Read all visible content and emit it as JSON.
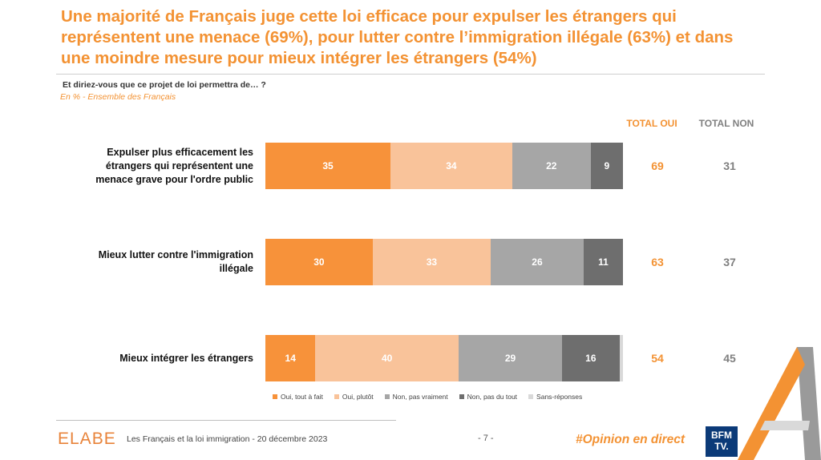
{
  "header": {
    "title": "Une majorité de Français juge cette loi efficace pour expulser les étrangers qui représentent une menace (69%), pour lutter contre l’immigration illégale (63%) et dans une moindre mesure pour mieux intégrer les étrangers (54%)",
    "question": "Et diriez-vous que ce projet de loi permettra de… ?",
    "base": "En % - Ensemble des Français"
  },
  "columns": {
    "total_yes": "TOTAL OUI",
    "total_no": "TOTAL NON"
  },
  "colors": {
    "oui_tout_a_fait": "#f7923a",
    "oui_plutot": "#f9c39a",
    "non_pas_vraiment": "#a6a6a6",
    "non_pas_du_tout": "#6e6e6e",
    "sans_reponse": "#d9d9d9",
    "accent": "#f39233"
  },
  "chart_data": {
    "type": "bar",
    "orientation": "horizontal-stacked-100",
    "categories": [
      "Expulser plus efficacement les étrangers qui représentent une menace grave pour l'ordre public",
      "Mieux lutter contre l'immigration illégale",
      "Mieux intégrer les étrangers"
    ],
    "series": [
      {
        "name": "Oui, tout à fait",
        "values": [
          35,
          30,
          14
        ]
      },
      {
        "name": "Oui, plutôt",
        "values": [
          34,
          33,
          40
        ]
      },
      {
        "name": "Non, pas vraiment",
        "values": [
          22,
          26,
          29
        ]
      },
      {
        "name": "Non, pas du tout",
        "values": [
          9,
          11,
          16
        ]
      },
      {
        "name": "Sans-réponses",
        "values": [
          0,
          0,
          1
        ]
      }
    ],
    "totals_yes": [
      69,
      63,
      54
    ],
    "totals_no": [
      31,
      37,
      45
    ],
    "legend_position": "bottom"
  },
  "footer": {
    "logo": "ELABE",
    "text": "Les Français et la loi immigration - 20 décembre 2023",
    "page": "- 7 -",
    "hashtag": "#Opinion en direct",
    "channel_logo_line1": "BFM",
    "channel_logo_line2": "TV."
  }
}
